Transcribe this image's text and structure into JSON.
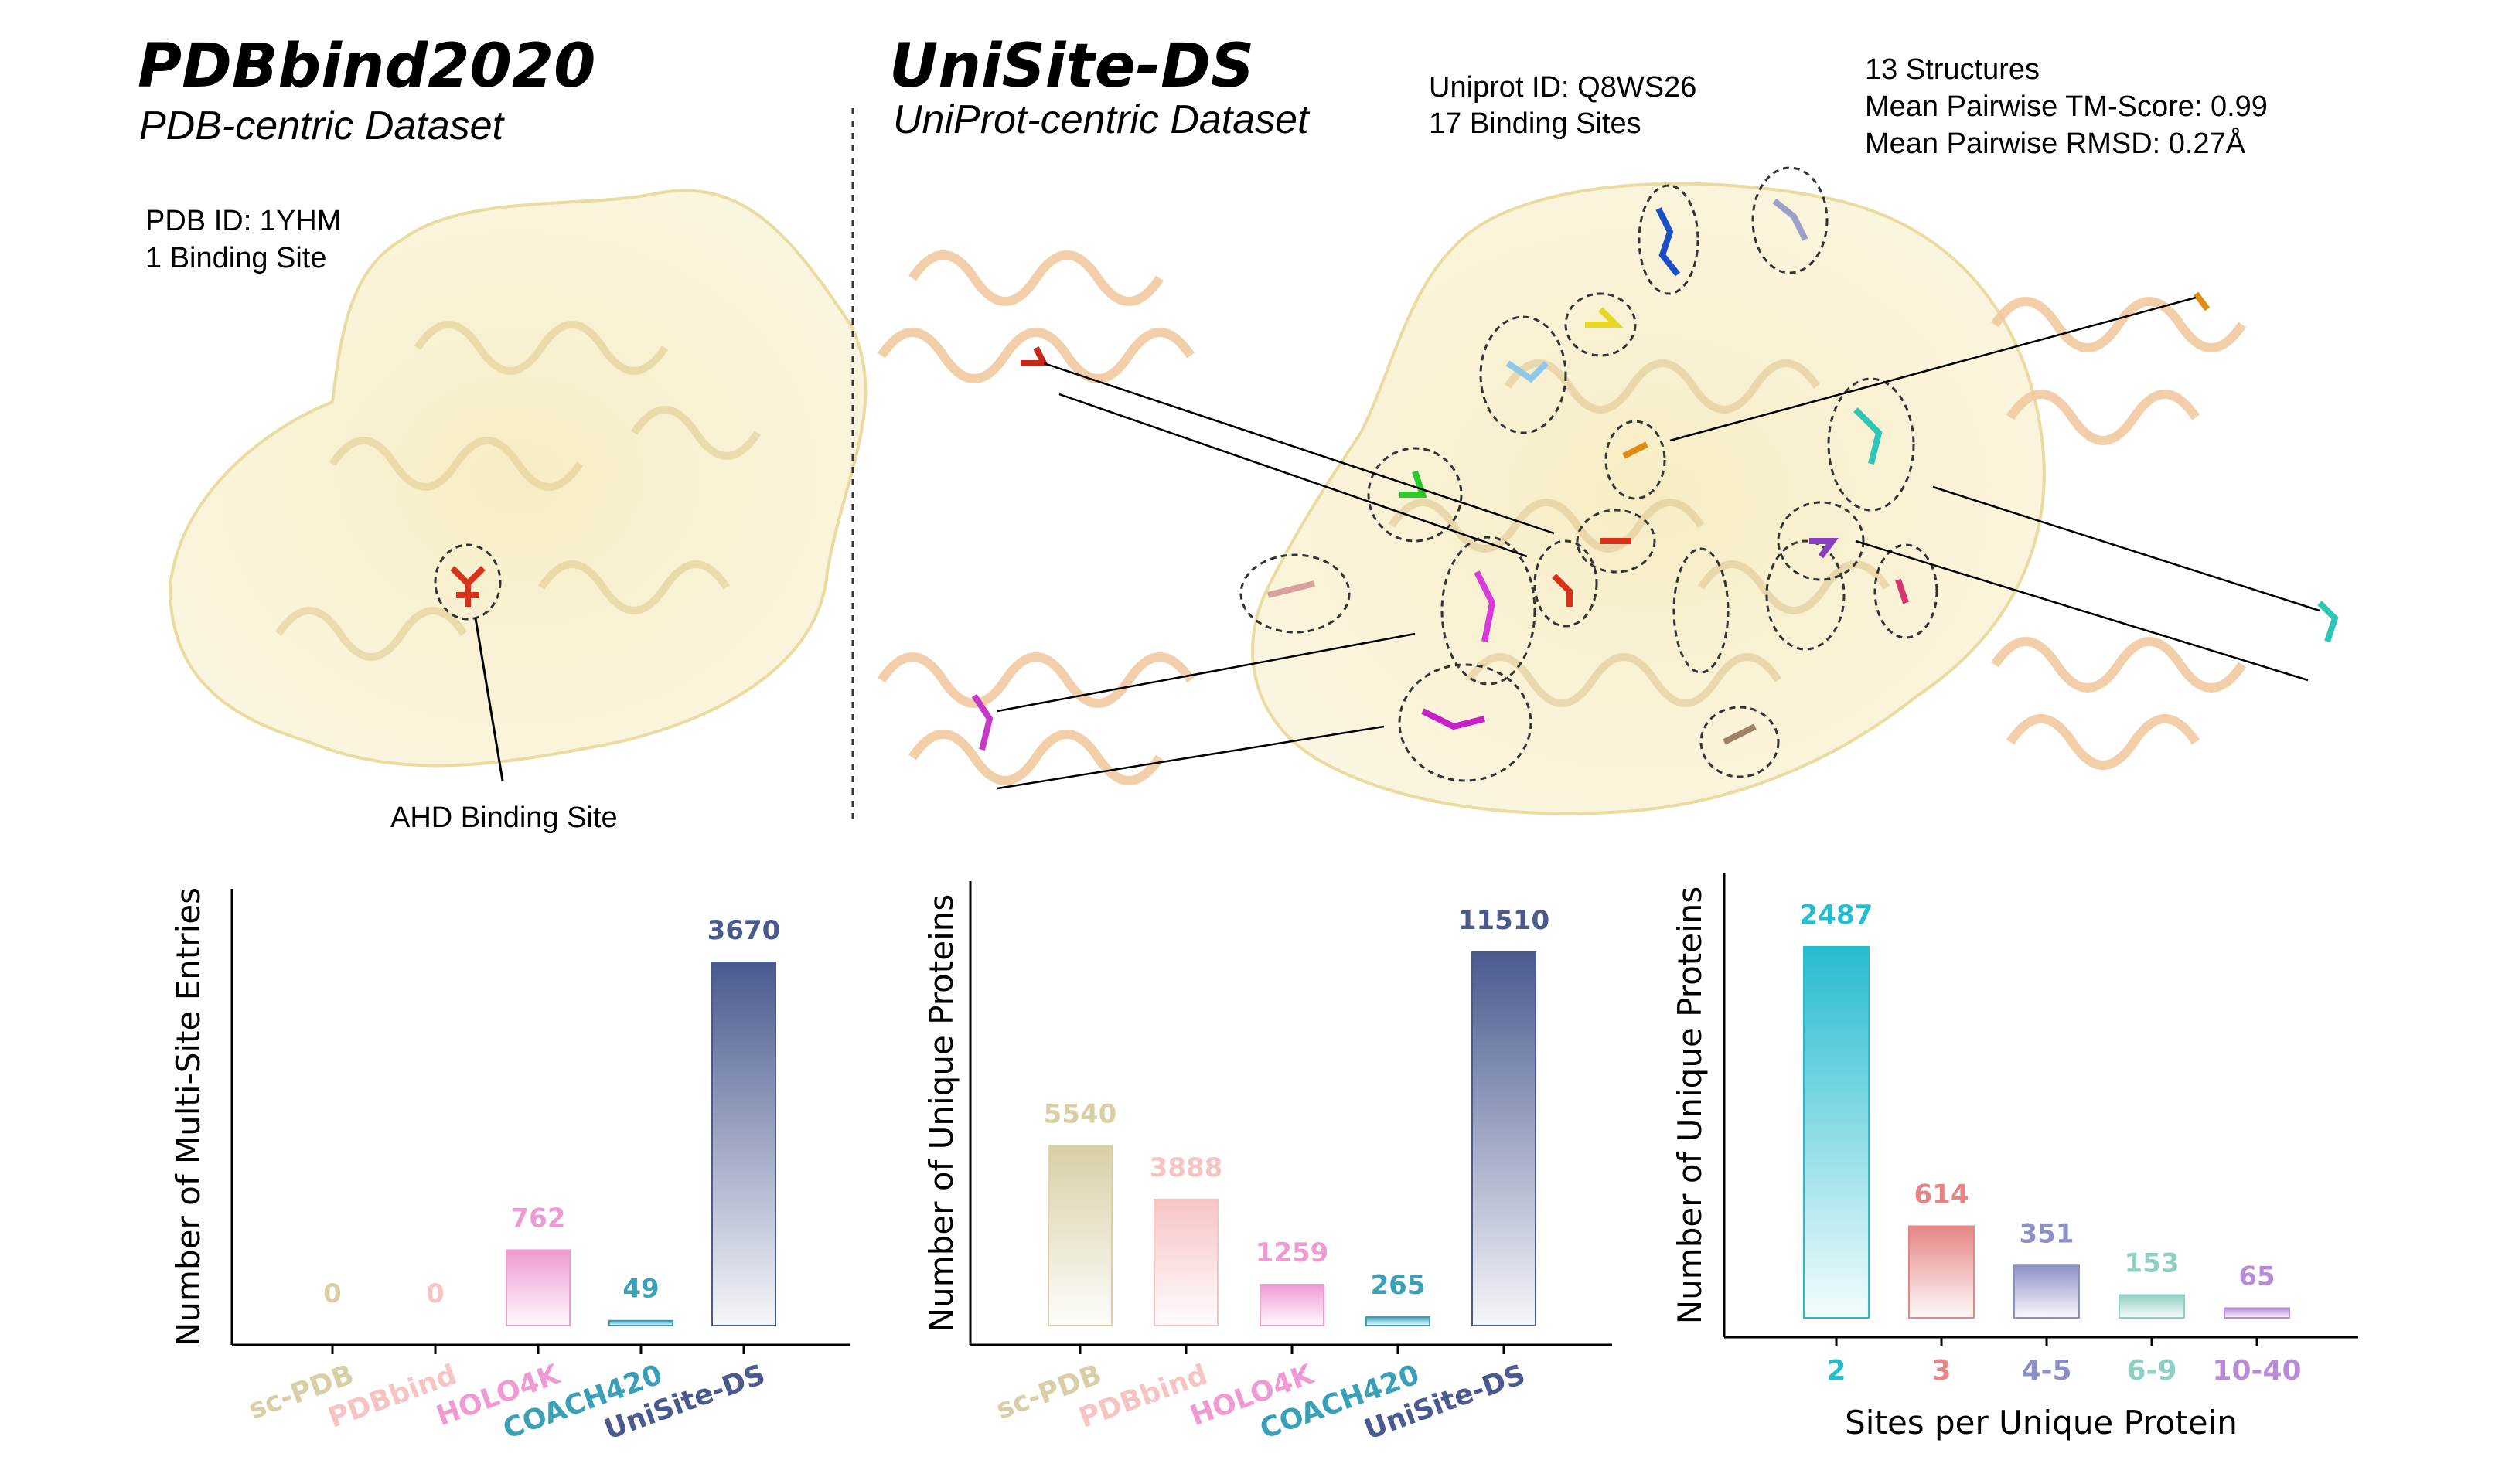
{
  "panels": {
    "left": {
      "title": "PDBbind2020",
      "subtitle": "PDB-centric Dataset",
      "info": [
        "PDB ID: 1YHM",
        "1 Binding Site"
      ],
      "callout": "AHD Binding Site"
    },
    "right": {
      "title": "UniSite-DS",
      "subtitle": "UniProt-centric Dataset",
      "info": [
        "Uniprot ID: Q8WS26",
        "17 Binding Sites"
      ],
      "stats": [
        "13 Structures",
        "Mean Pairwise TM-Score: 0.99",
        "Mean Pairwise RMSD: 0.27Å"
      ]
    }
  },
  "chart_data": [
    {
      "type": "bar",
      "categories": [
        "sc-PDB",
        "PDBbind",
        "HOLO4K",
        "COACH420",
        "UniSite-DS"
      ],
      "values": [
        0,
        0,
        762,
        49,
        3670
      ],
      "labels": [
        "0",
        "0",
        "762",
        "49",
        "3670"
      ],
      "colors": [
        "#d9cfa6",
        "#f7c4c4",
        "#ee9ad3",
        "#3aa0b8",
        "#4a5a8f"
      ],
      "ylabel": "Number of Multi-Site Entries",
      "xlabel": "",
      "ylim": [
        0,
        3670
      ]
    },
    {
      "type": "bar",
      "categories": [
        "sc-PDB",
        "PDBbind",
        "HOLO4K",
        "COACH420",
        "UniSite-DS"
      ],
      "values": [
        5540,
        3888,
        1259,
        265,
        11510
      ],
      "labels": [
        "5540",
        "3888",
        "1259",
        "265",
        "11510"
      ],
      "colors": [
        "#d9cfa6",
        "#f7c4c4",
        "#ee9ad3",
        "#3aa0b8",
        "#4a5a8f"
      ],
      "ylabel": "Number of Unique Proteins",
      "xlabel": "",
      "ylim": [
        0,
        11510
      ]
    },
    {
      "type": "bar",
      "categories": [
        "2",
        "3",
        "4-5",
        "6-9",
        "10-40"
      ],
      "values": [
        2487,
        614,
        351,
        153,
        65
      ],
      "labels": [
        "2487",
        "614",
        "351",
        "153",
        "65"
      ],
      "colors": [
        "#26bcd0",
        "#e68585",
        "#8d90c6",
        "#8fd0c4",
        "#b78bd6"
      ],
      "ylabel": "Number of Unique Proteins",
      "xlabel": "Sites per Unique Protein",
      "ylim": [
        0,
        2487
      ]
    }
  ]
}
